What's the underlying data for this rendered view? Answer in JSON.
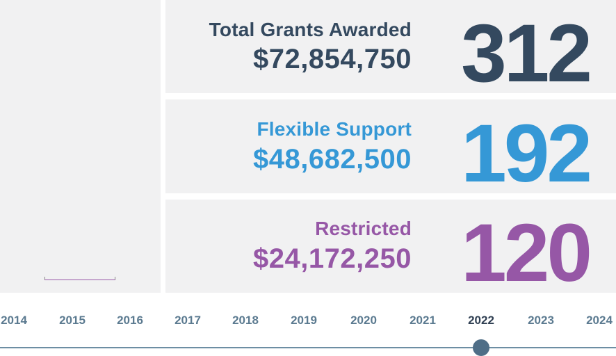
{
  "colors": {
    "total": "#34495f",
    "flexible": "#3598d6",
    "restricted": "#9657a6",
    "timeline": "#6d8ea3",
    "active_dot": "#4f6e87"
  },
  "cards": {
    "total": {
      "label": "Total Grants Awarded",
      "amount": "$72,854,750",
      "count": "312"
    },
    "flexible": {
      "label": "Flexible Support",
      "amount": "$48,682,500",
      "count": "192"
    },
    "restricted": {
      "label": "Restricted",
      "amount": "$24,172,250",
      "count": "120"
    }
  },
  "timeline": {
    "years": [
      "2014",
      "2015",
      "2016",
      "2017",
      "2018",
      "2019",
      "2020",
      "2021",
      "2022",
      "2023",
      "2024"
    ],
    "selected": "2022"
  }
}
